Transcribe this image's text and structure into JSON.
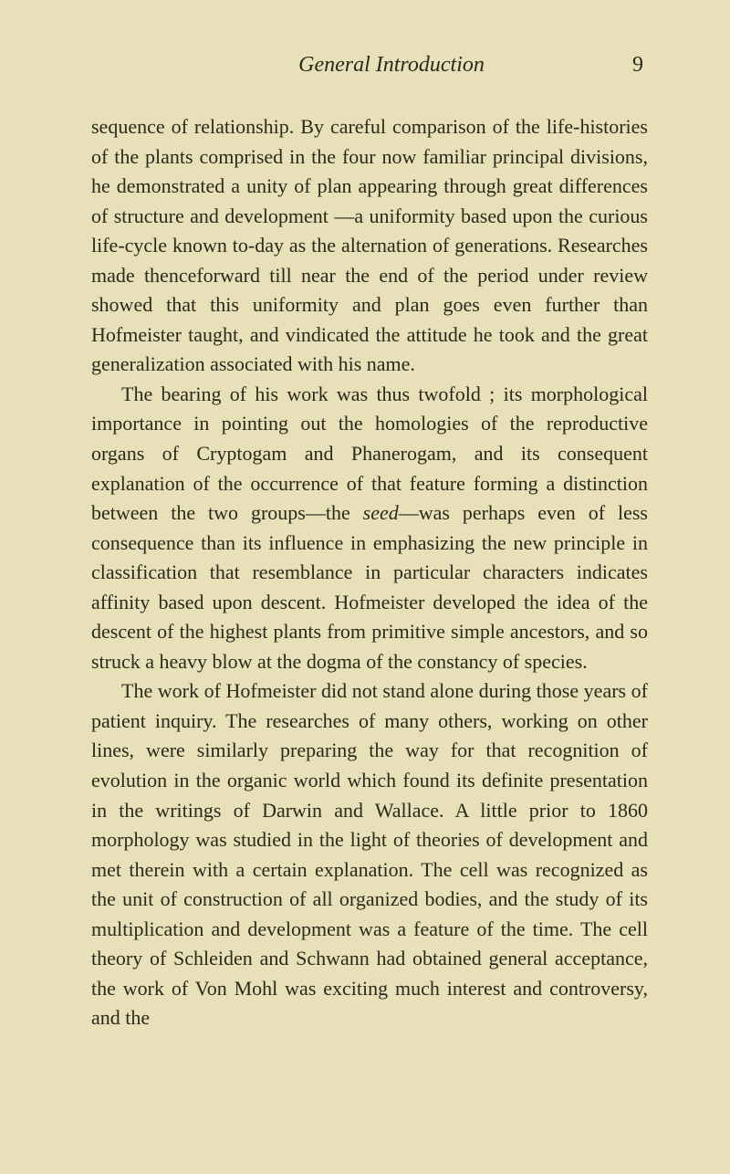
{
  "header": {
    "running_title": "General Introduction",
    "page_number": "9"
  },
  "paragraphs": {
    "p1_part1": "sequence of relationship. By careful comparison of the life-histories of the plants comprised in the four now familiar principal divisions, he demonstrated a unity of plan appear­ing through great differences of structure and development —a uniformity based upon the curious life-cycle known to-day as the alternation of generations. Researches made thenceforward till near the end of the period under review showed that this uniformity and plan goes even further than Hofmeister taught, and vindicated the attitude he took and the great generalization associated with his name.",
    "p2_part1": "The bearing of his work was thus twofold ; its morpho­logical importance in pointing out the homologies of the reproductive organs of Cryptogam and Phanerogam, and its consequent explanation of the occurrence of that feature forming a distinction between the two groups—the ",
    "p2_seed": "seed",
    "p2_part2": "—was perhaps even of less consequence than its influence in emphasizing the new principle in classifica­tion that resemblance in particular characters indicates affinity based upon descent. Hofmeister developed the idea of the descent of the highest plants from primitive simple ancestors, and so struck a heavy blow at the dogma of the constancy of species.",
    "p3": "The work of Hofmeister did not stand alone during those years of patient inquiry. The researches of many others, working on other lines, were similarly preparing the way for that recognition of evolution in the organic world which found its definite presentation in the writings of Darwin and Wallace. A little prior to 1860 morphology was studied in the light of theories of development and met therein with a certain explanation. The cell was recognized as the unit of construction of all organized bodies, and the study of its multiplication and development was a feature of the time. The cell theory of Schleiden and Schwann had obtained general acceptance, the work of Von Mohl was exciting much interest and controversy, and the"
  },
  "styling": {
    "background_color": "#e8e0b8",
    "text_color": "#2a2a1a",
    "body_font_size": 22,
    "header_font_size": 24,
    "line_height": 1.48
  }
}
